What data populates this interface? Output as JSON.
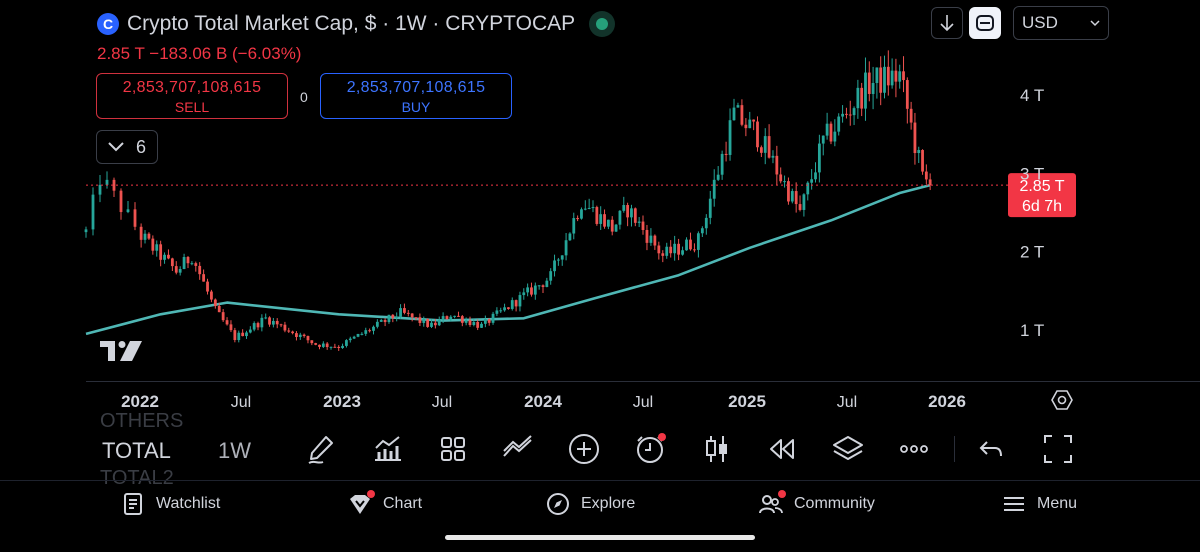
{
  "header": {
    "title": "Crypto Total Market Cap, $ · 1W · CRYPTOCAP",
    "logo_glyph": "C",
    "change": "2.85 T  −183.06 B (−6.03%)",
    "sell": {
      "price": "2,853,707,108,615",
      "label": "SELL"
    },
    "buy": {
      "price": "2,853,707,108,615",
      "label": "BUY"
    },
    "spread": "0",
    "indicators_count": "6",
    "currency": "USD"
  },
  "chart_data": {
    "type": "candlestick",
    "symbol": "TOTAL",
    "interval": "1W",
    "y_ticks": [
      {
        "label": "4 T",
        "value": 4.0
      },
      {
        "label": "3 T",
        "value": 3.0
      },
      {
        "label": "2 T",
        "value": 2.0
      },
      {
        "label": "1 T",
        "value": 1.0
      }
    ],
    "x_ticks": [
      {
        "label": "2022",
        "date": "2022-01-01"
      },
      {
        "label": "Jul",
        "date": "2022-07-01"
      },
      {
        "label": "2023",
        "date": "2023-01-01"
      },
      {
        "label": "Jul",
        "date": "2023-07-01"
      },
      {
        "label": "2024",
        "date": "2024-01-01"
      },
      {
        "label": "Jul",
        "date": "2024-07-01"
      },
      {
        "label": "2025",
        "date": "2025-01-01"
      },
      {
        "label": "Jul",
        "date": "2025-07-01"
      },
      {
        "label": "2026",
        "date": "2026-01-01"
      }
    ],
    "price_anchors": [
      {
        "date": "2021-11-08",
        "close": 2.25
      },
      {
        "date": "2021-11-22",
        "close": 2.95
      },
      {
        "date": "2022-01-03",
        "close": 2.2
      },
      {
        "date": "2022-03-07",
        "close": 1.75
      },
      {
        "date": "2022-04-04",
        "close": 1.95
      },
      {
        "date": "2022-05-16",
        "close": 1.25
      },
      {
        "date": "2022-06-20",
        "close": 0.9
      },
      {
        "date": "2022-08-15",
        "close": 1.15
      },
      {
        "date": "2022-11-14",
        "close": 0.82
      },
      {
        "date": "2022-12-26",
        "close": 0.79
      },
      {
        "date": "2023-04-17",
        "close": 1.22
      },
      {
        "date": "2023-06-12",
        "close": 1.05
      },
      {
        "date": "2023-07-17",
        "close": 1.2
      },
      {
        "date": "2023-09-11",
        "close": 1.05
      },
      {
        "date": "2023-10-30",
        "close": 1.3
      },
      {
        "date": "2024-01-15",
        "close": 1.68
      },
      {
        "date": "2024-03-11",
        "close": 2.65
      },
      {
        "date": "2024-05-06",
        "close": 2.3
      },
      {
        "date": "2024-06-03",
        "close": 2.55
      },
      {
        "date": "2024-08-05",
        "close": 1.95
      },
      {
        "date": "2024-10-07",
        "close": 2.15
      },
      {
        "date": "2024-12-09",
        "close": 3.75
      },
      {
        "date": "2025-01-20",
        "close": 3.5
      },
      {
        "date": "2025-04-07",
        "close": 2.5
      },
      {
        "date": "2025-05-19",
        "close": 3.4
      },
      {
        "date": "2025-08-11",
        "close": 4.15
      },
      {
        "date": "2025-10-06",
        "close": 4.25
      },
      {
        "date": "2025-11-17",
        "close": 2.95
      },
      {
        "date": "2025-12-01",
        "close": 2.85
      }
    ],
    "moving_average": [
      {
        "date": "2021-11-08",
        "value": 0.95
      },
      {
        "date": "2022-02-07",
        "value": 1.2
      },
      {
        "date": "2022-06-06",
        "value": 1.35
      },
      {
        "date": "2022-12-26",
        "value": 1.2
      },
      {
        "date": "2023-07-03",
        "value": 1.12
      },
      {
        "date": "2023-11-27",
        "value": 1.15
      },
      {
        "date": "2024-04-01",
        "value": 1.4
      },
      {
        "date": "2024-09-02",
        "value": 1.7
      },
      {
        "date": "2025-01-06",
        "value": 2.05
      },
      {
        "date": "2025-06-02",
        "value": 2.4
      },
      {
        "date": "2025-10-06",
        "value": 2.75
      },
      {
        "date": "2025-12-01",
        "value": 2.85
      }
    ],
    "last_price_label": "2.85 T",
    "last_price": 2.85,
    "countdown": "6d 7h",
    "colors": {
      "up": "#26a69a",
      "down": "#ef5350",
      "ma": "#4fb7b5",
      "last": "#f23645"
    }
  },
  "toolbar": {
    "symbols_above": "OTHERS",
    "symbol": "TOTAL",
    "symbols_below": "TOTAL2",
    "interval": "1W",
    "icons": [
      "drawing-pen-icon",
      "indicators-icon",
      "templates-icon",
      "compare-icon",
      "add-icon",
      "alert-clock-icon",
      "candles-style-icon",
      "replay-icon",
      "layers-icon",
      "more-icon",
      "undo-icon",
      "fullscreen-icon"
    ]
  },
  "nav": {
    "watchlist": "Watchlist",
    "chart": "Chart",
    "explore": "Explore",
    "community": "Community",
    "menu": "Menu"
  }
}
